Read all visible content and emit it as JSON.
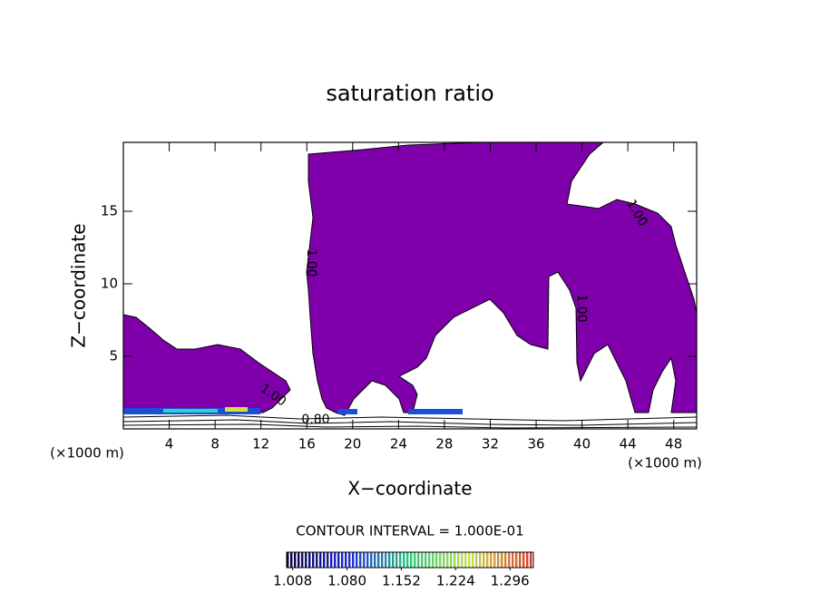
{
  "chart_data": {
    "type": "contour",
    "title": "saturation ratio",
    "xlabel": "X−coordinate",
    "ylabel": "Z−coordinate",
    "x_unit": "(×1000 m)",
    "x_unit_right": "(×1000 m)",
    "xlim": [
      0,
      50
    ],
    "ylim": [
      0,
      19.75
    ],
    "xticks": [
      4,
      8,
      12,
      16,
      20,
      24,
      28,
      32,
      36,
      40,
      44,
      48
    ],
    "yticks": [
      5,
      10,
      15
    ],
    "fill_color": "#7f00aa",
    "contour_levels": [
      {
        "value": 1,
        "label": "1.00"
      },
      {
        "value": 0.8,
        "label": "0.80"
      }
    ],
    "contour_interval": "CONTOUR INTERVAL = 1.000E-01",
    "colorbar_lim": [
      1.0,
      1.327
    ],
    "colorbar_ticks": [
      1.008,
      {
        "value": 1.08,
        "label": "1.080"
      },
      1.152,
      1.224,
      1.296
    ]
  }
}
